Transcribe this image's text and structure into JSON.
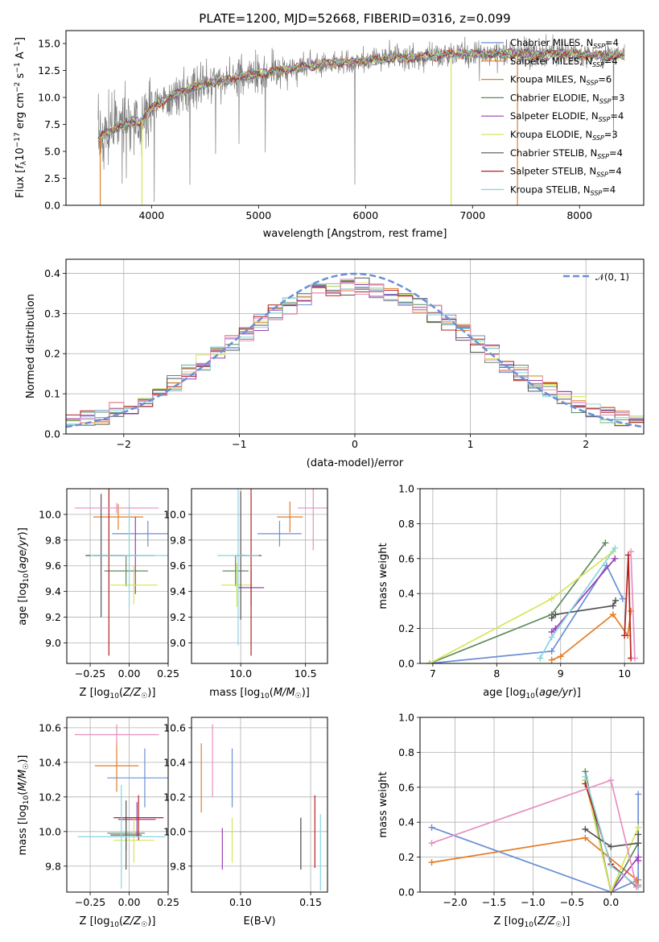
{
  "colors": [
    "#1f77b4",
    "#ff7f0e",
    "#2ca02c",
    "#d62728",
    "#9467bd",
    "#8c564b",
    "#e377c2",
    "#7f7f7f",
    "#bcbd22",
    "#17becf"
  ],
  "chart_data": [
    {
      "id": "spectrum",
      "type": "line",
      "title": "PLATE=1200, MJD=52668, FIBERID=0316, z=0.099",
      "xlabel": "wavelength [Angstrom, rest frame]",
      "ylabel": "Flux [f_λ 10^-17 erg cm^-2 s^-1 A^-1]",
      "xlim": [
        3200,
        8600
      ],
      "ylim": [
        0,
        16.2
      ],
      "xticks": [
        "4000",
        "5000",
        "6000",
        "7000",
        "8000"
      ],
      "yticks": [
        "0.0",
        "2.5",
        "5.0",
        "7.5",
        "10.0",
        "12.5",
        "15.0"
      ],
      "legend_position": "right",
      "series": [
        {
          "name": "Chabrier MILES, N_SSP=4",
          "color": "#6a8fd5"
        },
        {
          "name": "Salpeter MILES, N_SSP=4",
          "color": "#e27d28"
        },
        {
          "name": "Kroupa MILES, N_SSP=6",
          "color": "#c78a2e"
        },
        {
          "name": "Chabrier ELODIE, N_SSP=3",
          "color": "#5f8a5f"
        },
        {
          "name": "Salpeter ELODIE, N_SSP=4",
          "color": "#9a3fb5"
        },
        {
          "name": "Kroupa ELODIE, N_SSP=3",
          "color": "#d6e55a"
        },
        {
          "name": "Chabrier STELIB, N_SSP=4",
          "color": "#555555"
        },
        {
          "name": "Salpeter STELIB, N_SSP=4",
          "color": "#b22222"
        },
        {
          "name": "Kroupa STELIB, N_SSP=4",
          "color": "#87d4e0"
        }
      ],
      "data_color": "#808080",
      "continuum": [
        [
          3500,
          6.2
        ],
        [
          3700,
          7.4
        ],
        [
          3900,
          7.8
        ],
        [
          4000,
          9.0
        ],
        [
          4200,
          10.2
        ],
        [
          4400,
          11.0
        ],
        [
          4600,
          11.4
        ],
        [
          4800,
          11.8
        ],
        [
          5000,
          12.2
        ],
        [
          5200,
          12.5
        ],
        [
          5400,
          12.8
        ],
        [
          5600,
          13.1
        ],
        [
          5800,
          13.2
        ],
        [
          6000,
          13.4
        ],
        [
          6200,
          13.6
        ],
        [
          6400,
          13.7
        ],
        [
          6600,
          13.8
        ],
        [
          6800,
          14.0
        ],
        [
          7000,
          14.0
        ],
        [
          7200,
          14.0
        ],
        [
          7400,
          14.1
        ],
        [
          7600,
          14.0
        ],
        [
          7800,
          14.1
        ],
        [
          8000,
          14.0
        ],
        [
          8200,
          13.9
        ],
        [
          8400,
          13.9
        ]
      ]
    },
    {
      "id": "residuals",
      "type": "histogram",
      "xlabel": "(data-model)/error",
      "ylabel": "Normed distribution",
      "xlim": [
        -2.5,
        2.5
      ],
      "ylim": [
        0,
        0.435
      ],
      "xticks": [
        "−2",
        "−1",
        "0",
        "1",
        "2"
      ],
      "yticks": [
        "0.0",
        "0.1",
        "0.2",
        "0.3",
        "0.4"
      ],
      "grid": true,
      "legend_label": "𝒩(0, 1)",
      "legend_position": "top-right",
      "gauss_color": "#6a8fd5",
      "hist_colors": [
        "#6a8fd5",
        "#e27d28",
        "#5f8a5f",
        "#9a3fb5",
        "#d6e55a",
        "#555555",
        "#b22222",
        "#87d4e0",
        "#e88fbf"
      ],
      "bins": 40
    },
    {
      "id": "age-vs-Z",
      "type": "errorbar",
      "xlabel": "Z [log10(Z/Z☉)]",
      "ylabel": "age [log10(age/yr)]",
      "xlim": [
        -0.4,
        0.25
      ],
      "ylim": [
        8.84,
        10.2
      ],
      "xticks": [
        "−0.25",
        "0.00",
        "0.25"
      ],
      "yticks": [
        "9.0",
        "9.2",
        "9.4",
        "9.6",
        "9.8",
        "10.0"
      ],
      "points": [
        {
          "x": 0.12,
          "y": 9.85,
          "xerr": 0.23,
          "yerr": 0.1,
          "color": "#6a8fd5"
        },
        {
          "x": -0.07,
          "y": 9.98,
          "xerr": 0.16,
          "yerr": 0.1,
          "color": "#e27d28"
        },
        {
          "x": -0.02,
          "y": 9.56,
          "xerr": 0.14,
          "yerr": 0.12,
          "color": "#5f8a5f"
        },
        {
          "x": 0.04,
          "y": 9.68,
          "xerr": 0.12,
          "yerr": 0.3,
          "color": "#9a3fb5"
        },
        {
          "x": 0.03,
          "y": 9.45,
          "xerr": 0.15,
          "yerr": 0.15,
          "color": "#d6e55a"
        },
        {
          "x": -0.18,
          "y": 9.68,
          "xerr": 0.1,
          "yerr": 0.48,
          "color": "#555555"
        },
        {
          "x": -0.13,
          "y": 9.68,
          "xerr": 0.1,
          "yerr": 0.78,
          "color": "#b22222"
        },
        {
          "x": 0.0,
          "y": 9.68,
          "xerr": 0.25,
          "yerr": 0.4,
          "color": "#87d4e0"
        },
        {
          "x": -0.08,
          "y": 10.05,
          "xerr": 0.27,
          "yerr": 0.04,
          "color": "#e88fbf"
        }
      ]
    },
    {
      "id": "age-vs-mass",
      "type": "errorbar",
      "xlabel": "mass [log10(M/M☉)]",
      "ylabel": "",
      "xlim": [
        9.62,
        10.67
      ],
      "ylim": [
        8.84,
        10.2
      ],
      "xticks": [
        "10.0",
        "10.5"
      ],
      "yticks": [
        "9.0",
        "9.2",
        "9.4",
        "9.6",
        "9.8",
        "10.0"
      ],
      "points": [
        {
          "x": 10.3,
          "y": 9.85,
          "xerr": 0.17,
          "yerr": 0.1,
          "color": "#6a8fd5"
        },
        {
          "x": 10.38,
          "y": 9.98,
          "xerr": 0.1,
          "yerr": 0.12,
          "color": "#e27d28"
        },
        {
          "x": 9.96,
          "y": 9.56,
          "xerr": 0.1,
          "yerr": 0.12,
          "color": "#5f8a5f"
        },
        {
          "x": 10.08,
          "y": 9.43,
          "xerr": 0.1,
          "yerr": 0.14,
          "color": "#9a3fb5"
        },
        {
          "x": 9.97,
          "y": 9.45,
          "xerr": 0.12,
          "yerr": 0.17,
          "color": "#d6e55a"
        },
        {
          "x": 10.0,
          "y": 9.68,
          "xerr": 0.04,
          "yerr": 0.5,
          "color": "#555555"
        },
        {
          "x": 10.08,
          "y": 9.68,
          "xerr": 0.08,
          "yerr": 0.78,
          "color": "#b22222"
        },
        {
          "x": 9.98,
          "y": 9.68,
          "xerr": 0.16,
          "yerr": 0.7,
          "color": "#87d4e0"
        },
        {
          "x": 10.56,
          "y": 10.05,
          "xerr": 0.12,
          "yerr": 0.33,
          "color": "#e88fbf"
        }
      ]
    },
    {
      "id": "massweight-vs-age",
      "type": "line",
      "xlabel": "age [log10(age/yr)]",
      "ylabel": "mass weight",
      "xlim": [
        6.8,
        10.3
      ],
      "ylim": [
        0,
        1.0
      ],
      "xticks": [
        "7",
        "8",
        "9",
        "10"
      ],
      "yticks": [
        "0.0",
        "0.2",
        "0.4",
        "0.6",
        "0.8",
        "1.0"
      ],
      "grid": true,
      "series": [
        {
          "color": "#6a8fd5",
          "x": [
            6.95,
            8.86,
            9.72,
            9.97
          ],
          "y": [
            0.0,
            0.07,
            0.56,
            0.37
          ]
        },
        {
          "color": "#e27d28",
          "x": [
            8.86,
            9.0,
            9.82,
            10.05,
            10.1
          ],
          "y": [
            0.02,
            0.04,
            0.28,
            0.16,
            0.3
          ]
        },
        {
          "color": "#5f8a5f",
          "x": [
            6.95,
            8.86,
            9.7
          ],
          "y": [
            0.0,
            0.28,
            0.69
          ]
        },
        {
          "color": "#9a3fb5",
          "x": [
            8.86,
            8.92,
            9.85
          ],
          "y": [
            0.18,
            0.2,
            0.6
          ]
        },
        {
          "color": "#d6e55a",
          "x": [
            6.95,
            8.86,
            9.82
          ],
          "y": [
            0.0,
            0.37,
            0.64
          ]
        },
        {
          "color": "#555555",
          "x": [
            8.86,
            8.92,
            9.82,
            9.86
          ],
          "y": [
            0.26,
            0.28,
            0.33,
            0.36
          ]
        },
        {
          "color": "#b22222",
          "x": [
            10.0,
            10.06,
            10.1
          ],
          "y": [
            0.16,
            0.62,
            0.03
          ]
        },
        {
          "color": "#87d4e0",
          "x": [
            8.68,
            8.86,
            9.85
          ],
          "y": [
            0.03,
            0.15,
            0.66
          ]
        },
        {
          "color": "#e88fbf",
          "x": [
            10.1,
            10.16
          ],
          "y": [
            0.64,
            0.03
          ]
        }
      ]
    },
    {
      "id": "mass-vs-Z",
      "type": "errorbar",
      "xlabel": "Z [log10(Z/Z☉)]",
      "ylabel": "mass [log10(M/M☉)]",
      "xlim": [
        -0.4,
        0.25
      ],
      "ylim": [
        9.65,
        10.66
      ],
      "xticks": [
        "−0.25",
        "0.00",
        "0.25"
      ],
      "yticks": [
        "9.8",
        "10.0",
        "10.2",
        "10.4",
        "10.6"
      ],
      "points": [
        {
          "x": 0.1,
          "y": 10.31,
          "xerr": 0.24,
          "yerr": 0.17,
          "color": "#6a8fd5"
        },
        {
          "x": -0.08,
          "y": 10.38,
          "xerr": 0.14,
          "yerr": 0.15,
          "color": "#e27d28"
        },
        {
          "x": -0.02,
          "y": 9.99,
          "xerr": 0.12,
          "yerr": 0.1,
          "color": "#5f8a5f"
        },
        {
          "x": 0.05,
          "y": 10.07,
          "xerr": 0.12,
          "yerr": 0.1,
          "color": "#9a3fb5"
        },
        {
          "x": 0.03,
          "y": 9.95,
          "xerr": 0.13,
          "yerr": 0.13,
          "color": "#d6e55a"
        },
        {
          "x": -0.02,
          "y": 9.98,
          "xerr": 0.1,
          "yerr": 0.2,
          "color": "#555555"
        },
        {
          "x": 0.06,
          "y": 10.08,
          "xerr": 0.16,
          "yerr": 0.13,
          "color": "#b22222"
        },
        {
          "x": -0.05,
          "y": 9.97,
          "xerr": 0.28,
          "yerr": 0.3,
          "color": "#87d4e0"
        },
        {
          "x": -0.08,
          "y": 10.56,
          "xerr": 0.27,
          "yerr": 0.06,
          "color": "#e88fbf"
        }
      ]
    },
    {
      "id": "mass-vs-ebv",
      "type": "errorbar",
      "xlabel": "E(B-V)",
      "ylabel": "",
      "xlim": [
        0.065,
        0.162
      ],
      "ylim": [
        9.65,
        10.66
      ],
      "xticks": [
        "0.10",
        "0.15"
      ],
      "yticks": [
        "9.8",
        "10.0",
        "10.2",
        "10.4",
        "10.6"
      ],
      "points": [
        {
          "x": 0.094,
          "y": 10.31,
          "xerr": 0,
          "yerr": 0.17,
          "color": "#6a8fd5"
        },
        {
          "x": 0.072,
          "y": 10.31,
          "xerr": 0,
          "yerr": 0.2,
          "color": "#e27d28"
        },
        {
          "x": 0.143,
          "y": 9.93,
          "xerr": 0,
          "yerr": 0.15,
          "color": "#5f8a5f"
        },
        {
          "x": 0.087,
          "y": 9.9,
          "xerr": 0,
          "yerr": 0.12,
          "color": "#9a3fb5"
        },
        {
          "x": 0.094,
          "y": 9.95,
          "xerr": 0,
          "yerr": 0.13,
          "color": "#d6e55a"
        },
        {
          "x": 0.143,
          "y": 9.93,
          "xerr": 0,
          "yerr": 0.15,
          "color": "#555555"
        },
        {
          "x": 0.153,
          "y": 10.0,
          "xerr": 0,
          "yerr": 0.21,
          "color": "#b22222"
        },
        {
          "x": 0.157,
          "y": 9.88,
          "xerr": 0,
          "yerr": 0.22,
          "color": "#87d4e0"
        },
        {
          "x": 0.08,
          "y": 10.41,
          "xerr": 0,
          "yerr": 0.21,
          "color": "#e88fbf"
        }
      ]
    },
    {
      "id": "massweight-vs-Z",
      "type": "line",
      "xlabel": "Z [log10(Z/Z☉)]",
      "ylabel": "mass weight",
      "xlim": [
        -2.45,
        0.42
      ],
      "ylim": [
        0,
        1.0
      ],
      "xticks": [
        "−2.0",
        "−1.5",
        "−1.0",
        "−0.5",
        "0.0"
      ],
      "yticks": [
        "0.0",
        "0.2",
        "0.4",
        "0.6",
        "0.8",
        "1.0"
      ],
      "grid": true,
      "series": [
        {
          "color": "#6a8fd5",
          "x": [
            -2.3,
            0.0,
            0.35,
            0.35
          ],
          "y": [
            0.37,
            0.0,
            0.07,
            0.56
          ]
        },
        {
          "color": "#e27d28",
          "x": [
            -2.3,
            -0.33,
            0.33,
            0.35
          ],
          "y": [
            0.17,
            0.31,
            0.07,
            0.04
          ]
        },
        {
          "color": "#5f8a5f",
          "x": [
            -0.33,
            0.0,
            0.35
          ],
          "y": [
            0.69,
            0.0,
            0.28
          ]
        },
        {
          "color": "#9a3fb5",
          "x": [
            -0.33,
            0.0,
            0.35,
            0.35
          ],
          "y": [
            0.64,
            0.0,
            0.2,
            0.18
          ]
        },
        {
          "color": "#d6e55a",
          "x": [
            -0.33,
            0.0,
            0.35
          ],
          "y": [
            0.64,
            0.0,
            0.37
          ]
        },
        {
          "color": "#555555",
          "x": [
            -0.33,
            0.0,
            0.35,
            0.35
          ],
          "y": [
            0.36,
            0.26,
            0.28,
            0.33
          ]
        },
        {
          "color": "#b22222",
          "x": [
            -0.33,
            0.0,
            0.33
          ],
          "y": [
            0.62,
            0.16,
            0.03
          ]
        },
        {
          "color": "#87d4e0",
          "x": [
            -0.33,
            0.0,
            0.35
          ],
          "y": [
            0.66,
            0.15,
            0.03
          ]
        },
        {
          "color": "#e88fbf",
          "x": [
            -2.3,
            0.0,
            0.33
          ],
          "y": [
            0.28,
            0.64,
            0.03
          ]
        }
      ]
    }
  ]
}
